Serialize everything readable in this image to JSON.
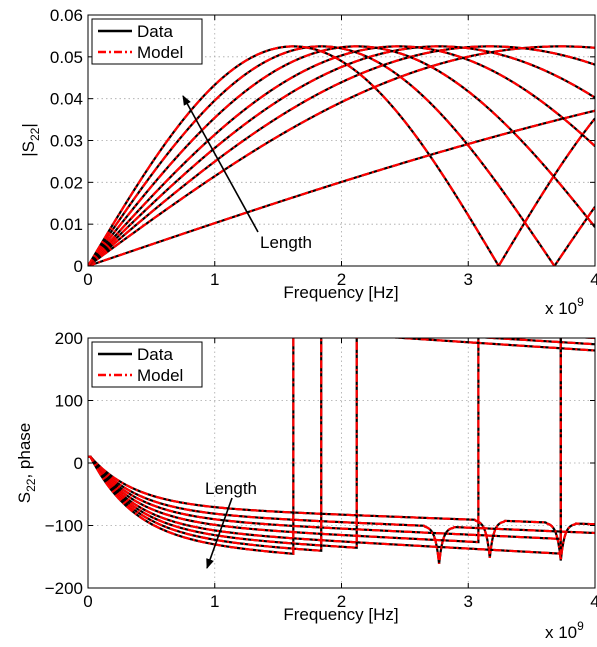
{
  "chart_data": [
    {
      "type": "line",
      "ylabel": "|S22|",
      "ylabel_main": "|S",
      "ylabel_sub": "22",
      "ylabel_tail": "|",
      "xlabel": "Frequency [Hz]",
      "x_multiplier": "x 10",
      "x_multiplier_exp": "9",
      "xlim": [
        0,
        4
      ],
      "ylim": [
        0,
        0.06
      ],
      "xticks": [
        "0",
        "1",
        "2",
        "3",
        "4"
      ],
      "yticks": [
        "0",
        "0.01",
        "0.02",
        "0.03",
        "0.04",
        "0.05",
        "0.06"
      ],
      "grid": true,
      "legend": {
        "placement": "top-left",
        "entries": [
          "Data",
          "Model"
        ]
      },
      "annotation": {
        "text": "Length",
        "x": 1.35,
        "y": 0.0095
      },
      "series_style": {
        "Data": {
          "color": "#000000",
          "dash": "solid"
        },
        "Model": {
          "color": "#ff0000",
          "dash": "dash-dot"
        }
      },
      "curves": [
        {
          "peak_x": 8.0,
          "amplitude": 0.0525
        },
        {
          "peak_x": 3.73,
          "amplitude": 0.0525
        },
        {
          "peak_x": 3.17,
          "amplitude": 0.0525
        },
        {
          "peak_x": 2.77,
          "amplitude": 0.0525
        },
        {
          "peak_x": 2.45,
          "amplitude": 0.0525
        },
        {
          "peak_x": 2.12,
          "amplitude": 0.0525
        },
        {
          "peak_x": 1.84,
          "amplitude": 0.0525
        },
        {
          "peak_x": 1.62,
          "amplitude": 0.0525
        }
      ]
    },
    {
      "type": "line",
      "ylabel": "S22, phase",
      "ylabel_main": "S",
      "ylabel_sub": "22",
      "ylabel_tail": ", phase",
      "xlabel": "Frequency [Hz]",
      "x_multiplier": "x 10",
      "x_multiplier_exp": "9",
      "xlim": [
        0,
        4
      ],
      "ylim": [
        -200,
        200
      ],
      "xticks": [
        "0",
        "1",
        "2",
        "3",
        "4"
      ],
      "yticks": [
        "-200",
        "-100",
        "0",
        "100",
        "200"
      ],
      "grid": true,
      "legend": {
        "placement": "top-left",
        "entries": [
          "Data",
          "Model"
        ]
      },
      "annotation": {
        "text": "Length",
        "x": 0.9,
        "y": -45
      },
      "series_style": {
        "Data": {
          "color": "#000000",
          "dash": "solid"
        },
        "Model": {
          "color": "#ff0000",
          "dash": "dash-dot"
        }
      },
      "curves": [
        {
          "end_phase": -98,
          "wraps": [],
          "notch_x": [
            3.17,
            3.73
          ]
        },
        {
          "end_phase": -112,
          "wraps": [],
          "notch_x": [
            2.77
          ]
        },
        {
          "end_phase": -124,
          "wraps": [
            3.73
          ],
          "notch_x": []
        },
        {
          "end_phase": -136,
          "wraps": [
            3.08
          ],
          "notch_x": []
        },
        {
          "end_phase": -148,
          "wraps": [
            3.73
          ],
          "notch_x": []
        },
        {
          "end_phase": -158,
          "wraps": [
            2.12
          ],
          "notch_x": []
        },
        {
          "end_phase": -168,
          "wraps": [
            1.84
          ],
          "notch_x": []
        },
        {
          "end_phase": -178,
          "wraps": [
            1.62
          ],
          "notch_x": []
        }
      ]
    }
  ]
}
